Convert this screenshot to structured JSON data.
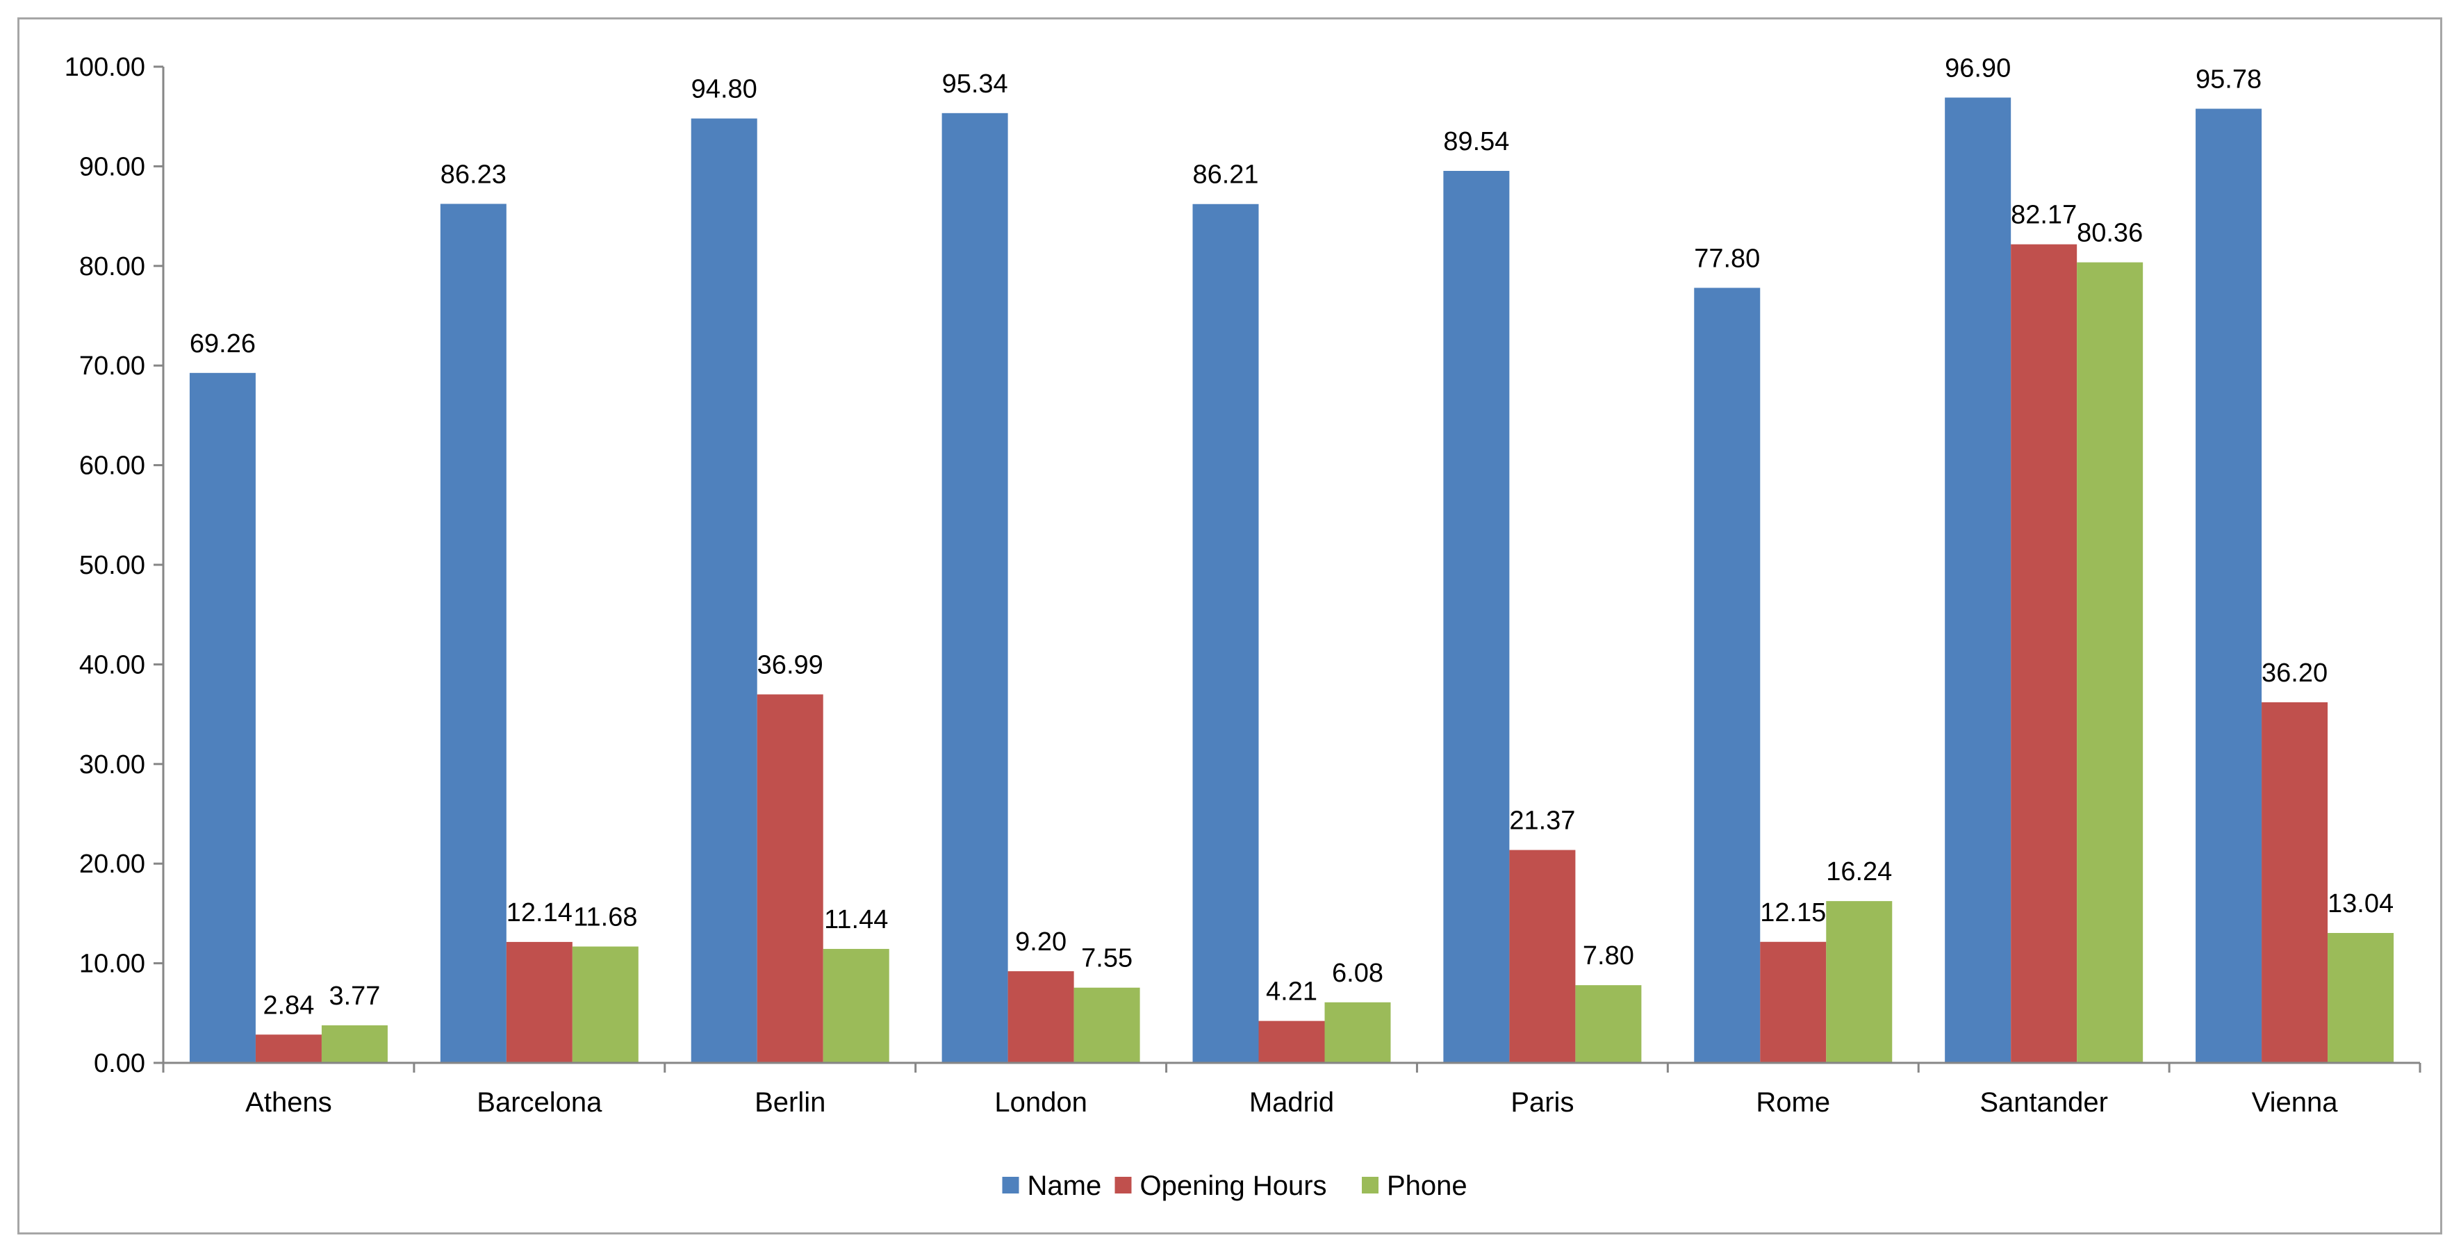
{
  "chart_data": {
    "type": "bar",
    "title": "",
    "xlabel": "",
    "ylabel": "",
    "ylim": [
      0,
      100
    ],
    "yticks": [
      0,
      10,
      20,
      30,
      40,
      50,
      60,
      70,
      80,
      90,
      100
    ],
    "ytick_labels": [
      "0.00",
      "10.00",
      "20.00",
      "30.00",
      "40.00",
      "50.00",
      "60.00",
      "70.00",
      "80.00",
      "90.00",
      "100.00"
    ],
    "grid": false,
    "legend_position": "bottom",
    "categories": [
      "Athens",
      "Barcelona",
      "Berlin",
      "London",
      "Madrid",
      "Paris",
      "Rome",
      "Santander",
      "Vienna"
    ],
    "series": [
      {
        "name": "Name",
        "color": "#4f81bd",
        "values": [
          69.26,
          86.23,
          94.8,
          95.34,
          86.21,
          89.54,
          77.8,
          96.9,
          95.78
        ],
        "labels": [
          "69.26",
          "86.23",
          "94.80",
          "95.34",
          "86.21",
          "89.54",
          "77.80",
          "96.90",
          "95.78"
        ]
      },
      {
        "name": "Opening Hours",
        "color": "#c0504d",
        "values": [
          2.84,
          12.14,
          36.99,
          9.2,
          4.21,
          21.37,
          12.15,
          82.17,
          36.2
        ],
        "labels": [
          "2.84",
          "12.14",
          "36.99",
          "9.20",
          "4.21",
          "21.37",
          "12.15",
          "82.17",
          "36.20"
        ]
      },
      {
        "name": "Phone",
        "color": "#9bbb59",
        "values": [
          3.77,
          11.68,
          11.44,
          7.55,
          6.08,
          7.8,
          16.24,
          80.36,
          13.04
        ],
        "labels": [
          "3.77",
          "11.68",
          "11.44",
          "7.55",
          "6.08",
          "7.80",
          "16.24",
          "80.36",
          "13.04"
        ]
      }
    ]
  }
}
